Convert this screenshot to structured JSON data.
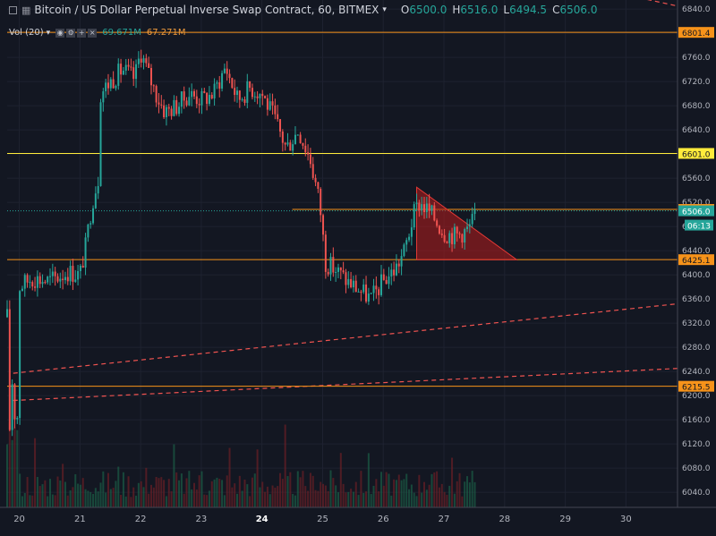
{
  "header": {
    "symbol_icon": "bar-chart-icon",
    "title": "Bitcoin / US Dollar Perpetual Inverse Swap Contract, 60, BITMEX",
    "ohlc": [
      {
        "k": "O",
        "v": "6500.0"
      },
      {
        "k": "H",
        "v": "6516.0"
      },
      {
        "k": "L",
        "v": "6494.5"
      },
      {
        "k": "C",
        "v": "6506.0"
      }
    ]
  },
  "volume_legend": {
    "label": "Vol (20)",
    "value1": "69.671M",
    "value2": "67.271M",
    "buttons": [
      "eye-icon",
      "settings-icon",
      "add-icon",
      "close-icon"
    ]
  },
  "chart_data": {
    "type": "candlestick",
    "x_axis_labels": [
      {
        "label": "20",
        "day": 20
      },
      {
        "label": "21",
        "day": 21
      },
      {
        "label": "22",
        "day": 22
      },
      {
        "label": "23",
        "day": 23
      },
      {
        "label": "24",
        "day": 24,
        "bold": true
      },
      {
        "label": "25",
        "day": 25
      },
      {
        "label": "26",
        "day": 26
      },
      {
        "label": "27",
        "day": 27
      },
      {
        "label": "28",
        "day": 28
      },
      {
        "label": "29",
        "day": 29
      },
      {
        "label": "30",
        "day": 30
      }
    ],
    "y_ticks": [
      6040.0,
      6080.0,
      6120.0,
      6160.0,
      6200.0,
      6240.0,
      6280.0,
      6320.0,
      6360.0,
      6400.0,
      6440.0,
      6480.0,
      6520.0,
      6560.0,
      6600.0,
      6640.0,
      6680.0,
      6720.0,
      6760.0,
      6800.0,
      6840.0
    ],
    "y_range": [
      6015,
      6855
    ],
    "x_range": [
      19.8,
      30.85
    ],
    "horizontal_levels": [
      {
        "value": 6801.4,
        "label": "6801.4",
        "color": "#f7931a"
      },
      {
        "value": 6601.0,
        "label": "6601.0",
        "color": "#ffeb3b"
      },
      {
        "value": 6508.3,
        "label": "6508.3",
        "color": "#f7931a",
        "start_day": 24.5
      },
      {
        "value": 6425.1,
        "label": "6425.1",
        "color": "#f7931a"
      },
      {
        "value": 6215.5,
        "label": "6215.5",
        "color": "#f7931a"
      }
    ],
    "current_price": {
      "value": 6506.0,
      "label": "6506.0",
      "countdown": "06:13",
      "color": "#26a69a"
    },
    "trend_lines": [
      {
        "from": [
          19.9,
          6237
        ],
        "to": [
          30.85,
          6352
        ],
        "color": "#ef5350",
        "style": "dashed"
      },
      {
        "from": [
          19.9,
          6192
        ],
        "to": [
          30.85,
          6245
        ],
        "color": "#ef5350",
        "style": "dashed"
      },
      {
        "from": [
          29.7,
          6870
        ],
        "to": [
          30.85,
          6845
        ],
        "color": "#ef5350",
        "style": "dashed"
      }
    ],
    "triangle_pattern": {
      "points": [
        [
          26.55,
          6545
        ],
        [
          26.55,
          6425
        ],
        [
          28.2,
          6425
        ]
      ],
      "fill": "#b71c1c"
    },
    "price_path": [
      [
        19.8,
        6330
      ],
      [
        19.85,
        6110
      ],
      [
        19.9,
        6280
      ],
      [
        19.95,
        6060
      ],
      [
        20.0,
        6380
      ],
      [
        20.2,
        6395
      ],
      [
        20.5,
        6390
      ],
      [
        20.8,
        6405
      ],
      [
        21.0,
        6400
      ],
      [
        21.1,
        6450
      ],
      [
        21.2,
        6520
      ],
      [
        21.3,
        6560
      ],
      [
        21.33,
        6700
      ],
      [
        21.5,
        6720
      ],
      [
        21.7,
        6740
      ],
      [
        21.9,
        6725
      ],
      [
        22.0,
        6770
      ],
      [
        22.1,
        6740
      ],
      [
        22.25,
        6700
      ],
      [
        22.4,
        6670
      ],
      [
        22.6,
        6680
      ],
      [
        22.8,
        6700
      ],
      [
        23.0,
        6690
      ],
      [
        23.2,
        6700
      ],
      [
        23.4,
        6745
      ],
      [
        23.6,
        6690
      ],
      [
        23.8,
        6710
      ],
      [
        24.0,
        6700
      ],
      [
        24.2,
        6660
      ],
      [
        24.4,
        6610
      ],
      [
        24.6,
        6640
      ],
      [
        24.8,
        6590
      ],
      [
        24.95,
        6520
      ],
      [
        25.05,
        6420
      ],
      [
        25.2,
        6410
      ],
      [
        25.4,
        6390
      ],
      [
        25.6,
        6375
      ],
      [
        25.8,
        6360
      ],
      [
        26.0,
        6390
      ],
      [
        26.2,
        6410
      ],
      [
        26.35,
        6440
      ],
      [
        26.5,
        6500
      ],
      [
        26.6,
        6520
      ],
      [
        26.8,
        6500
      ],
      [
        27.0,
        6470
      ],
      [
        27.2,
        6465
      ],
      [
        27.4,
        6475
      ],
      [
        27.55,
        6506
      ]
    ],
    "volume_axis_max": 70
  }
}
